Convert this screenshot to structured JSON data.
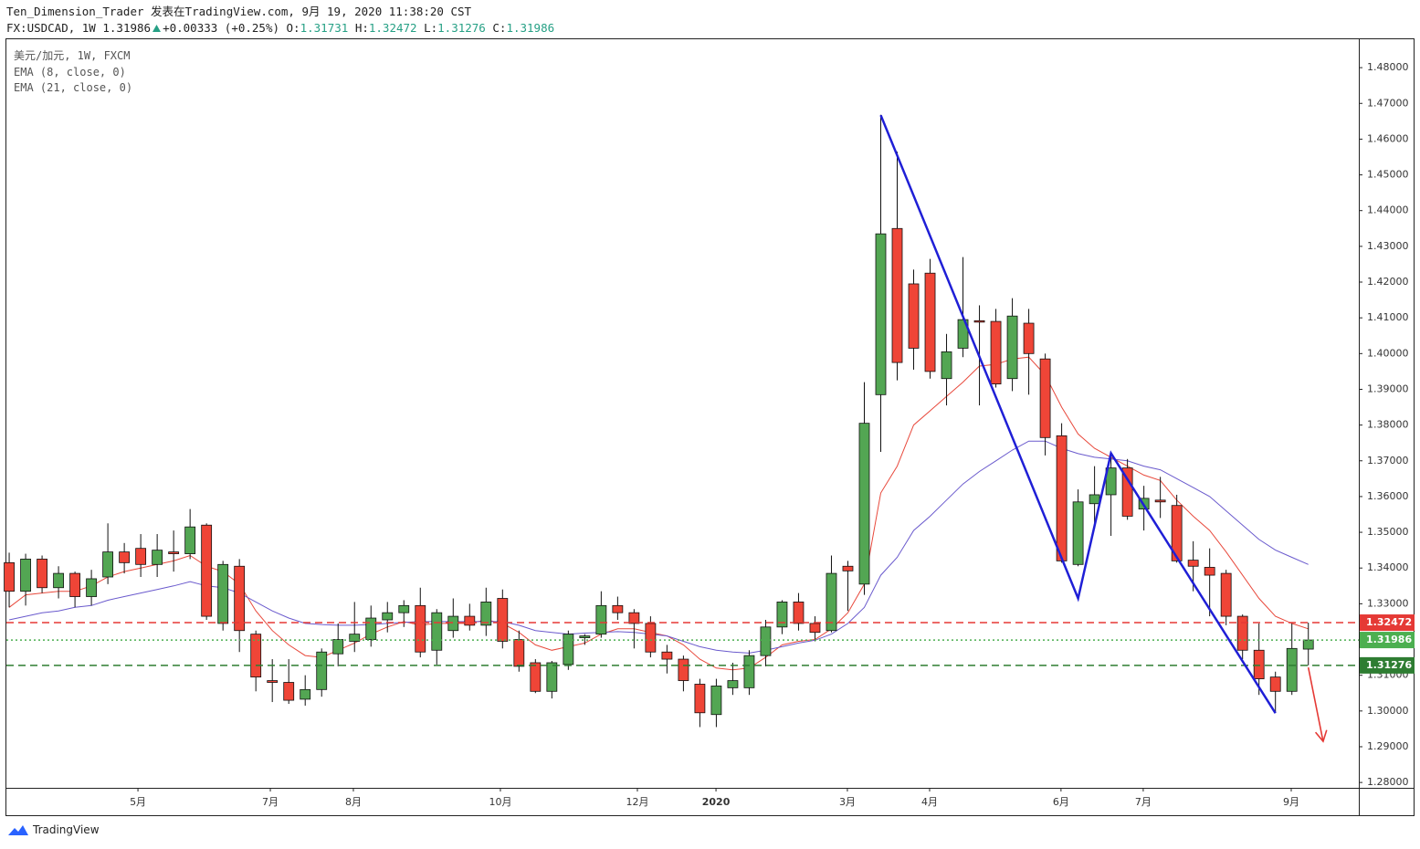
{
  "header": {
    "author_line": "Ten_Dimension_Trader 发表在TradingView.com, 9月 19, 2020 11:38:20 CST",
    "symbol": "FX:USDCAD, 1W",
    "last": "1.31986",
    "change": "+0.00333 (+0.25%)",
    "o_label": "O:",
    "open": "1.31731",
    "h_label": "H:",
    "high": "1.32472",
    "l_label": "L:",
    "low": "1.31276",
    "c_label": "C:",
    "close": "1.31986"
  },
  "footer": "TradingView",
  "chart_data": {
    "type": "candlestick",
    "legend_title": "美元/加元, 1W, FXCM",
    "up_color": "#53a653",
    "down_color": "#ef4537",
    "xlim": [
      -0.17,
      82.07
    ],
    "xticks": [
      {
        "value": 7.83,
        "label": "5月"
      },
      {
        "value": 15.88,
        "label": "7月"
      },
      {
        "value": 20.93,
        "label": "8月"
      },
      {
        "value": 29.87,
        "label": "10月"
      },
      {
        "value": 38.2,
        "label": "12月"
      },
      {
        "value": 42.98,
        "label": "2020"
      },
      {
        "value": 50.97,
        "label": "3月"
      },
      {
        "value": 55.97,
        "label": "4月"
      },
      {
        "value": 63.96,
        "label": "6月"
      },
      {
        "value": 68.96,
        "label": "7月"
      },
      {
        "value": 77.96,
        "label": "9月"
      }
    ],
    "ylim": [
      1.2785,
      1.4882
    ],
    "yticks": [
      {
        "value": 1.28,
        "label": "1.28000"
      },
      {
        "value": 1.29,
        "label": "1.29000"
      },
      {
        "value": 1.3,
        "label": "1.30000"
      },
      {
        "value": 1.31,
        "label": "1.31000"
      },
      {
        "value": 1.32,
        "label": "1.32000"
      },
      {
        "value": 1.33,
        "label": "1.33000"
      },
      {
        "value": 1.34,
        "label": "1.34000"
      },
      {
        "value": 1.35,
        "label": "1.35000"
      },
      {
        "value": 1.36,
        "label": "1.36000"
      },
      {
        "value": 1.37,
        "label": "1.37000"
      },
      {
        "value": 1.38,
        "label": "1.38000"
      },
      {
        "value": 1.39,
        "label": "1.39000"
      },
      {
        "value": 1.4,
        "label": "1.40000"
      },
      {
        "value": 1.41,
        "label": "1.41000"
      },
      {
        "value": 1.42,
        "label": "1.42000"
      },
      {
        "value": 1.43,
        "label": "1.43000"
      },
      {
        "value": 1.44,
        "label": "1.44000"
      },
      {
        "value": 1.45,
        "label": "1.45000"
      },
      {
        "value": 1.46,
        "label": "1.46000"
      },
      {
        "value": 1.47,
        "label": "1.47000"
      },
      {
        "value": 1.48,
        "label": "1.48000"
      }
    ],
    "open": [
      1.3415,
      1.3335,
      1.3425,
      1.3345,
      1.3385,
      1.332,
      1.3375,
      1.3445,
      1.3455,
      1.341,
      1.3445,
      1.344,
      1.352,
      1.3245,
      1.3405,
      1.3215,
      1.3085,
      1.308,
      1.3033,
      1.306,
      1.316,
      1.3195,
      1.32,
      1.3255,
      1.3275,
      1.3295,
      1.317,
      1.3225,
      1.3265,
      1.324,
      1.3315,
      1.32,
      1.3135,
      1.3055,
      1.313,
      1.3205,
      1.3215,
      1.3295,
      1.3275,
      1.3245,
      1.3165,
      1.3145,
      1.3075,
      1.299,
      1.3065,
      1.3065,
      1.3155,
      1.3235,
      1.3305,
      1.3245,
      1.3225,
      1.3405,
      1.3355,
      1.3885,
      1.435,
      1.4195,
      1.4225,
      1.393,
      1.4015,
      1.4092,
      1.409,
      1.393,
      1.4085,
      1.3985,
      1.377,
      1.341,
      1.358,
      1.3605,
      1.368,
      1.3565,
      1.359,
      1.3575,
      1.3422,
      1.3402,
      1.3385,
      1.3265,
      1.317,
      1.3095,
      1.3055,
      1.31731
    ],
    "high": [
      1.3443,
      1.344,
      1.3435,
      1.3405,
      1.339,
      1.3395,
      1.3525,
      1.347,
      1.3495,
      1.3495,
      1.3505,
      1.3565,
      1.3525,
      1.342,
      1.3425,
      1.3225,
      1.3145,
      1.3145,
      1.31,
      1.3175,
      1.3245,
      1.3305,
      1.3295,
      1.3305,
      1.331,
      1.3345,
      1.3285,
      1.3315,
      1.33,
      1.3345,
      1.334,
      1.3225,
      1.3145,
      1.314,
      1.3225,
      1.3215,
      1.3335,
      1.332,
      1.3285,
      1.3265,
      1.3185,
      1.3155,
      1.309,
      1.309,
      1.3135,
      1.317,
      1.3255,
      1.331,
      1.333,
      1.3265,
      1.3435,
      1.342,
      1.392,
      1.4668,
      1.4565,
      1.4235,
      1.4265,
      1.4055,
      1.427,
      1.4135,
      1.4125,
      1.4155,
      1.4125,
      1.4,
      1.3805,
      1.362,
      1.3685,
      1.3715,
      1.3705,
      1.363,
      1.3655,
      1.3605,
      1.3475,
      1.3455,
      1.3395,
      1.327,
      1.3245,
      1.311,
      1.3245,
      1.32472
    ],
    "low": [
      1.329,
      1.3295,
      1.333,
      1.3315,
      1.329,
      1.3295,
      1.3355,
      1.3385,
      1.3375,
      1.3375,
      1.339,
      1.3425,
      1.3255,
      1.3225,
      1.3165,
      1.3055,
      1.3025,
      1.302,
      1.3015,
      1.304,
      1.3125,
      1.3165,
      1.318,
      1.322,
      1.3235,
      1.315,
      1.313,
      1.3205,
      1.3225,
      1.321,
      1.3175,
      1.311,
      1.305,
      1.3035,
      1.3115,
      1.3185,
      1.3205,
      1.3255,
      1.3175,
      1.315,
      1.3105,
      1.3055,
      1.2955,
      1.2955,
      1.3045,
      1.3045,
      1.3125,
      1.3215,
      1.3225,
      1.3195,
      1.322,
      1.328,
      1.3325,
      1.3725,
      1.3925,
      1.3955,
      1.393,
      1.3855,
      1.399,
      1.3855,
      1.3905,
      1.3895,
      1.3885,
      1.3715,
      1.3415,
      1.3405,
      1.351,
      1.349,
      1.3535,
      1.3505,
      1.354,
      1.3415,
      1.3335,
      1.3265,
      1.324,
      1.3145,
      1.3045,
      1.2995,
      1.3045,
      1.31276
    ],
    "close": [
      1.3335,
      1.3425,
      1.3345,
      1.3385,
      1.332,
      1.337,
      1.3445,
      1.3415,
      1.341,
      1.345,
      1.344,
      1.3515,
      1.3265,
      1.341,
      1.3225,
      1.3095,
      1.308,
      1.303,
      1.306,
      1.3165,
      1.32,
      1.3215,
      1.326,
      1.3275,
      1.3295,
      1.3165,
      1.3275,
      1.3265,
      1.324,
      1.3305,
      1.3195,
      1.3125,
      1.3055,
      1.3135,
      1.3215,
      1.321,
      1.3295,
      1.3275,
      1.3245,
      1.3165,
      1.3145,
      1.3085,
      1.2995,
      1.307,
      1.3085,
      1.3155,
      1.3235,
      1.3305,
      1.3245,
      1.322,
      1.3385,
      1.3392,
      1.3805,
      1.4335,
      1.3975,
      1.4015,
      1.395,
      1.4005,
      1.4095,
      1.4088,
      1.3915,
      1.4105,
      1.4,
      1.3765,
      1.342,
      1.3585,
      1.3605,
      1.368,
      1.3545,
      1.3595,
      1.3585,
      1.342,
      1.3405,
      1.338,
      1.3265,
      1.317,
      1.309,
      1.3055,
      1.3175,
      1.31986
    ],
    "series": [
      {
        "name": "EMA (8, close, 0)",
        "color": "#e8493c",
        "values": [
          1.329,
          1.3325,
          1.333,
          1.3335,
          1.3335,
          1.335,
          1.3375,
          1.339,
          1.34,
          1.341,
          1.342,
          1.3435,
          1.3405,
          1.339,
          1.3355,
          1.328,
          1.3225,
          1.3185,
          1.3155,
          1.315,
          1.317,
          1.319,
          1.3215,
          1.3235,
          1.325,
          1.324,
          1.3245,
          1.3245,
          1.3245,
          1.3255,
          1.3245,
          1.322,
          1.3185,
          1.317,
          1.318,
          1.319,
          1.3215,
          1.323,
          1.323,
          1.322,
          1.321,
          1.3185,
          1.3145,
          1.312,
          1.3115,
          1.312,
          1.315,
          1.3185,
          1.3195,
          1.32,
          1.323,
          1.3275,
          1.3355,
          1.361,
          1.3685,
          1.38,
          1.384,
          1.388,
          1.392,
          1.3965,
          1.397,
          1.3985,
          1.399,
          1.394,
          1.385,
          1.3775,
          1.3735,
          1.371,
          1.3685,
          1.366,
          1.3645,
          1.359,
          1.3545,
          1.3505,
          1.3445,
          1.338,
          1.3315,
          1.3265,
          1.3245,
          1.323
        ]
      },
      {
        "name": "EMA (21, close, 0)",
        "color": "#6a5acd",
        "values": [
          1.3255,
          1.3265,
          1.3275,
          1.328,
          1.329,
          1.3295,
          1.331,
          1.332,
          1.333,
          1.334,
          1.335,
          1.3362,
          1.335,
          1.3345,
          1.333,
          1.3305,
          1.328,
          1.326,
          1.3245,
          1.3242,
          1.324,
          1.324,
          1.3242,
          1.3245,
          1.3248,
          1.325,
          1.325,
          1.325,
          1.325,
          1.325,
          1.325,
          1.324,
          1.3225,
          1.322,
          1.3215,
          1.3218,
          1.322,
          1.3222,
          1.322,
          1.3215,
          1.321,
          1.3195,
          1.318,
          1.317,
          1.3165,
          1.3162,
          1.317,
          1.318,
          1.319,
          1.3198,
          1.3215,
          1.3245,
          1.329,
          1.338,
          1.343,
          1.3505,
          1.3545,
          1.359,
          1.3635,
          1.367,
          1.37,
          1.373,
          1.3755,
          1.3755,
          1.3735,
          1.372,
          1.371,
          1.3705,
          1.37,
          1.3685,
          1.3675,
          1.365,
          1.3625,
          1.36,
          1.356,
          1.352,
          1.348,
          1.345,
          1.343,
          1.341
        ]
      }
    ],
    "price_lines": [
      {
        "value": 1.32472,
        "color": "#e53935",
        "dash": "8,5",
        "label_color": "#e53935"
      },
      {
        "value": 1.31986,
        "color": "#4caf50",
        "dash": "2,3",
        "label_color": "#4caf50"
      },
      {
        "value": 1.31276,
        "color": "#2e7d32",
        "dash": "8,5",
        "label_color": "#2e7d32"
      }
    ],
    "drawings": [
      {
        "color": "#1f1fd6",
        "x": [
          53,
          65,
          67,
          77
        ],
        "y": [
          1.4667,
          1.3315,
          1.3721,
          1.2994
        ],
        "arrow": false
      },
      {
        "color": "#e53935",
        "x": [
          79,
          79.9
        ],
        "y": [
          1.3122,
          1.2915
        ],
        "arrow": true
      }
    ]
  }
}
